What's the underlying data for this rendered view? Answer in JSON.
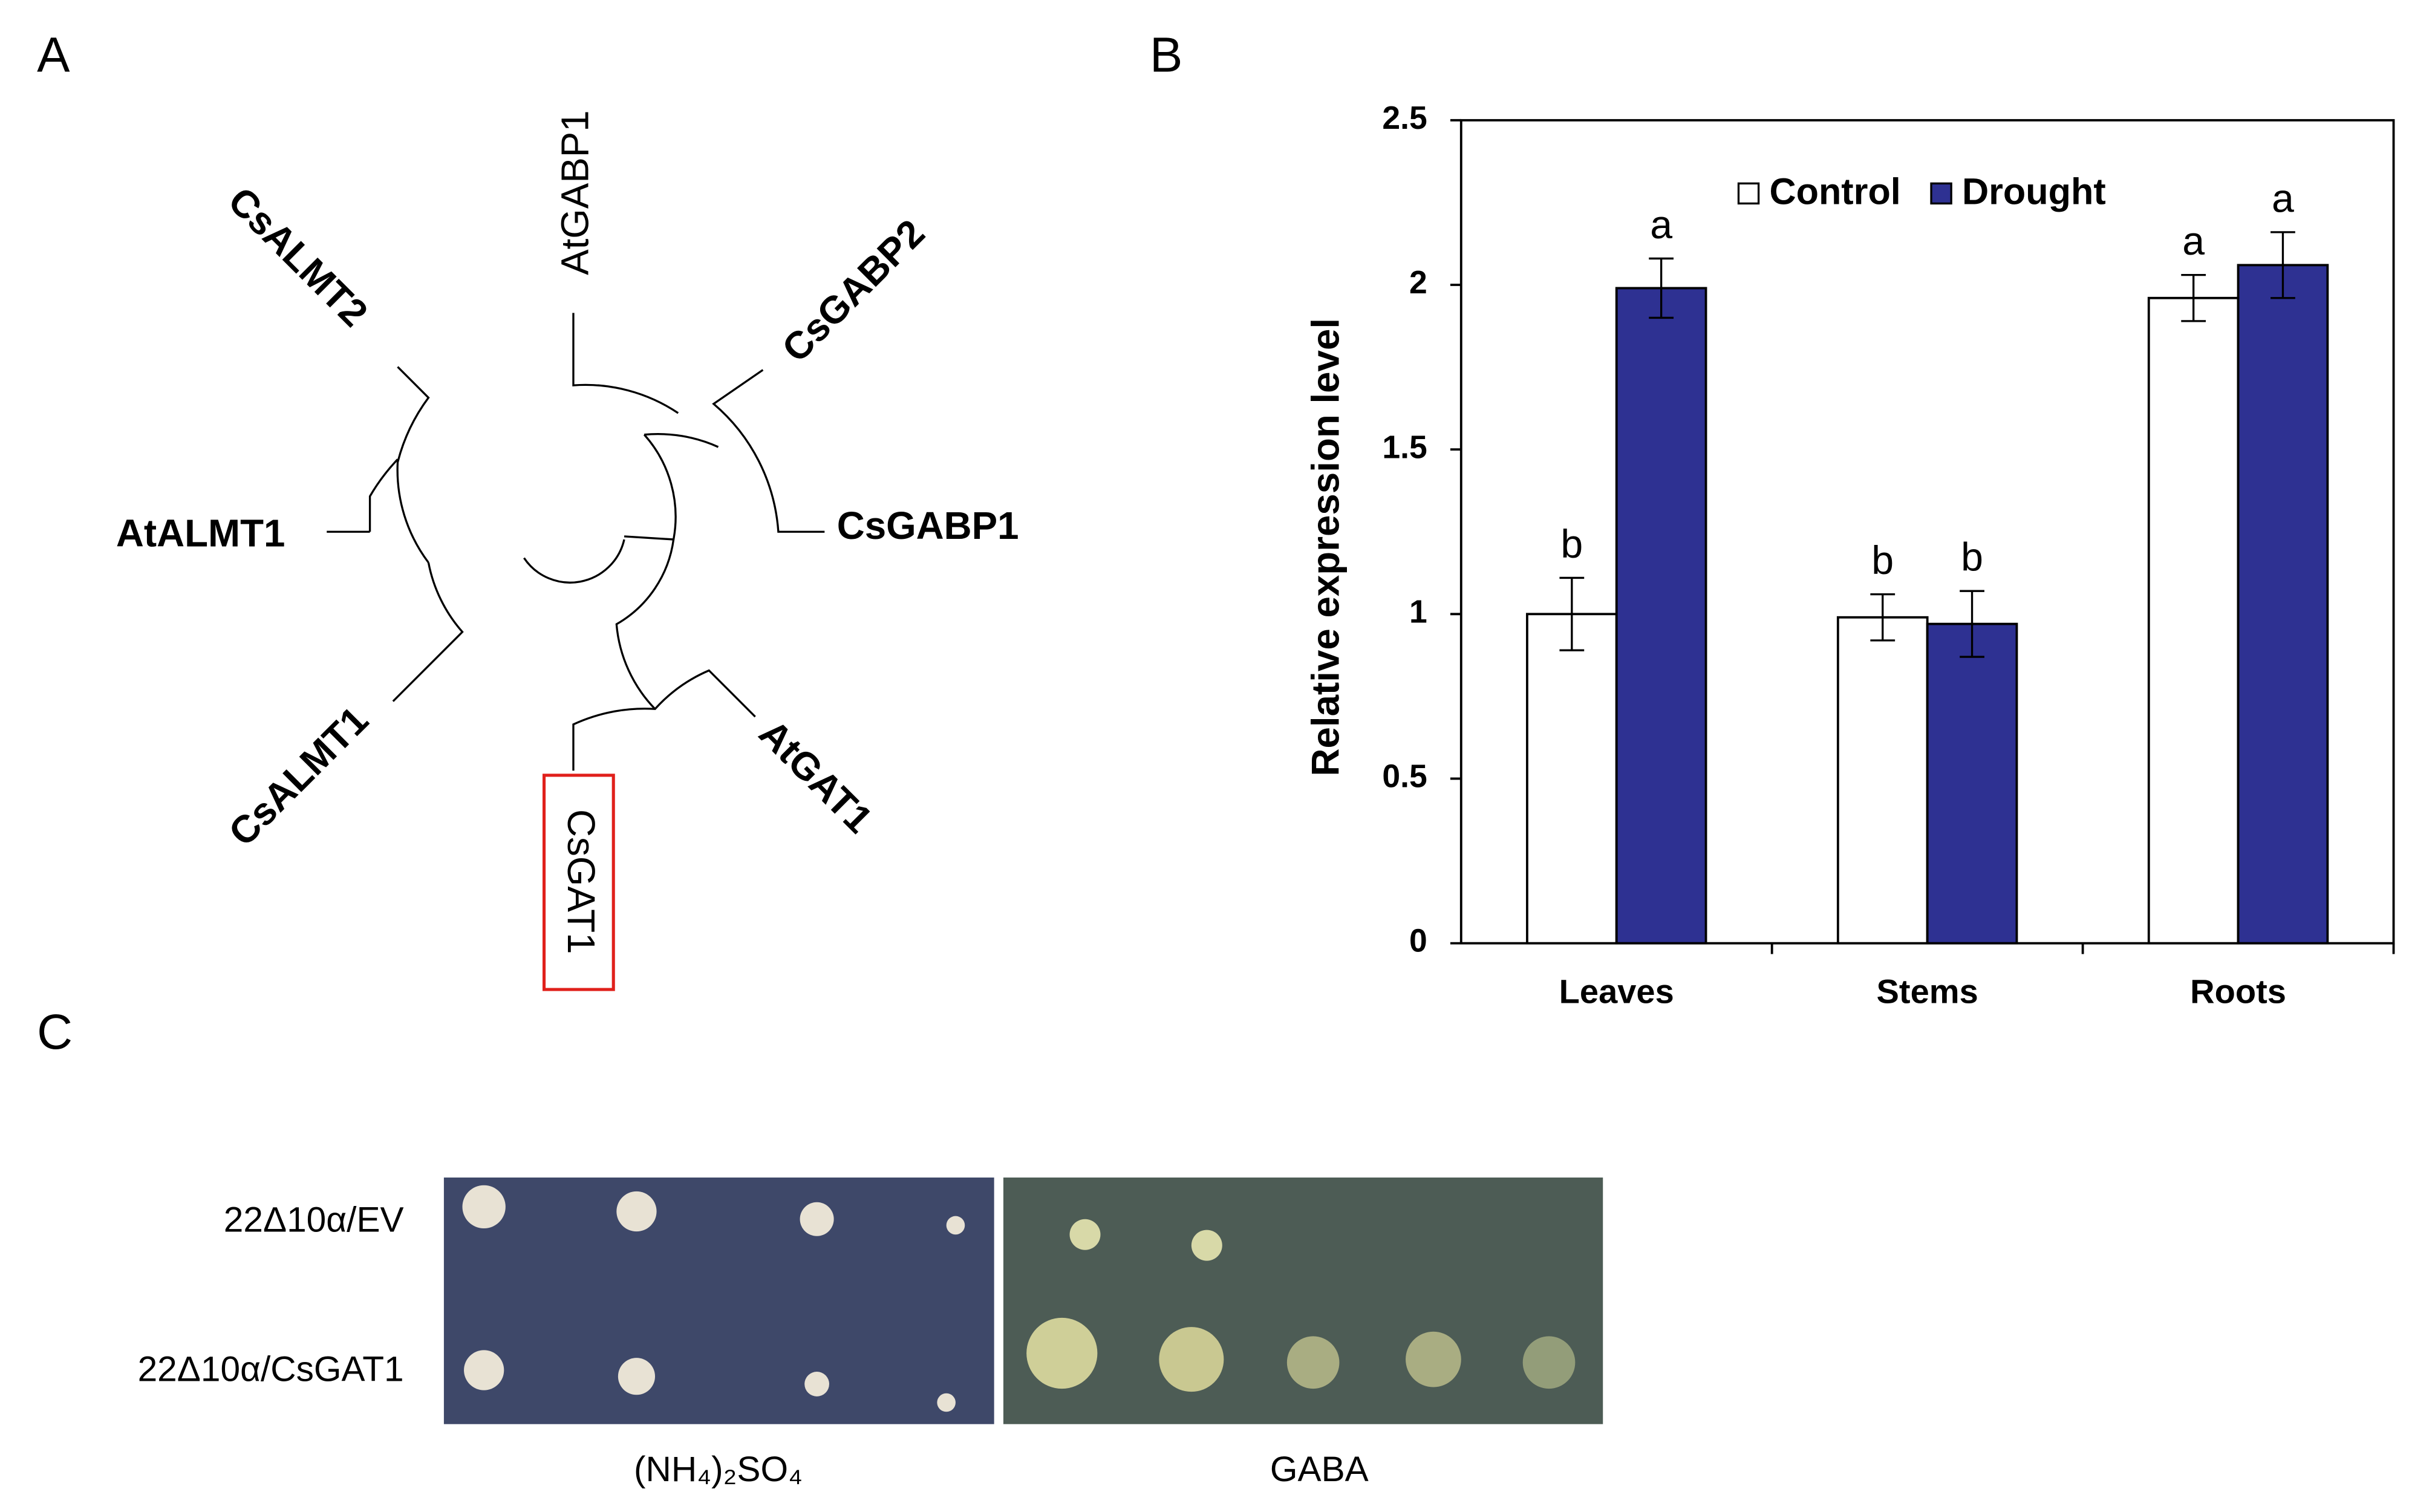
{
  "panel_a": {
    "label": "A",
    "leaves": [
      "AtGABP1",
      "CsGABP2",
      "CsGABP1",
      "AtGAT1",
      "CsGAT1",
      "CsALMT1",
      "AtALMT1",
      "CsALMT2"
    ]
  },
  "panel_b": {
    "label": "B"
  },
  "panel_c": {
    "label": "C",
    "rows": [
      "22Δ10α/EV",
      "22Δ10α/CsGAT1"
    ],
    "columns": [
      "(NH₄)₂SO₄",
      "GABA"
    ]
  },
  "chart_data": {
    "type": "bar",
    "y_label": "Relative expression level",
    "categories": [
      "Leaves",
      "Stems",
      "Roots"
    ],
    "series": [
      {
        "name": "Control",
        "color": "#ffffff",
        "values": [
          1.0,
          0.99,
          1.96
        ],
        "errors": [
          0.11,
          0.07,
          0.07
        ],
        "letters": [
          "b",
          "b",
          "a"
        ]
      },
      {
        "name": "Drought",
        "color": "#2e3192",
        "values": [
          1.99,
          0.97,
          2.06
        ],
        "errors": [
          0.09,
          0.1,
          0.1
        ],
        "letters": [
          "a",
          "b",
          "a"
        ]
      }
    ],
    "ylim": [
      0,
      2.5
    ],
    "yticks": [
      0,
      0.5,
      1,
      1.5,
      2,
      2.5
    ],
    "legend": "top"
  }
}
